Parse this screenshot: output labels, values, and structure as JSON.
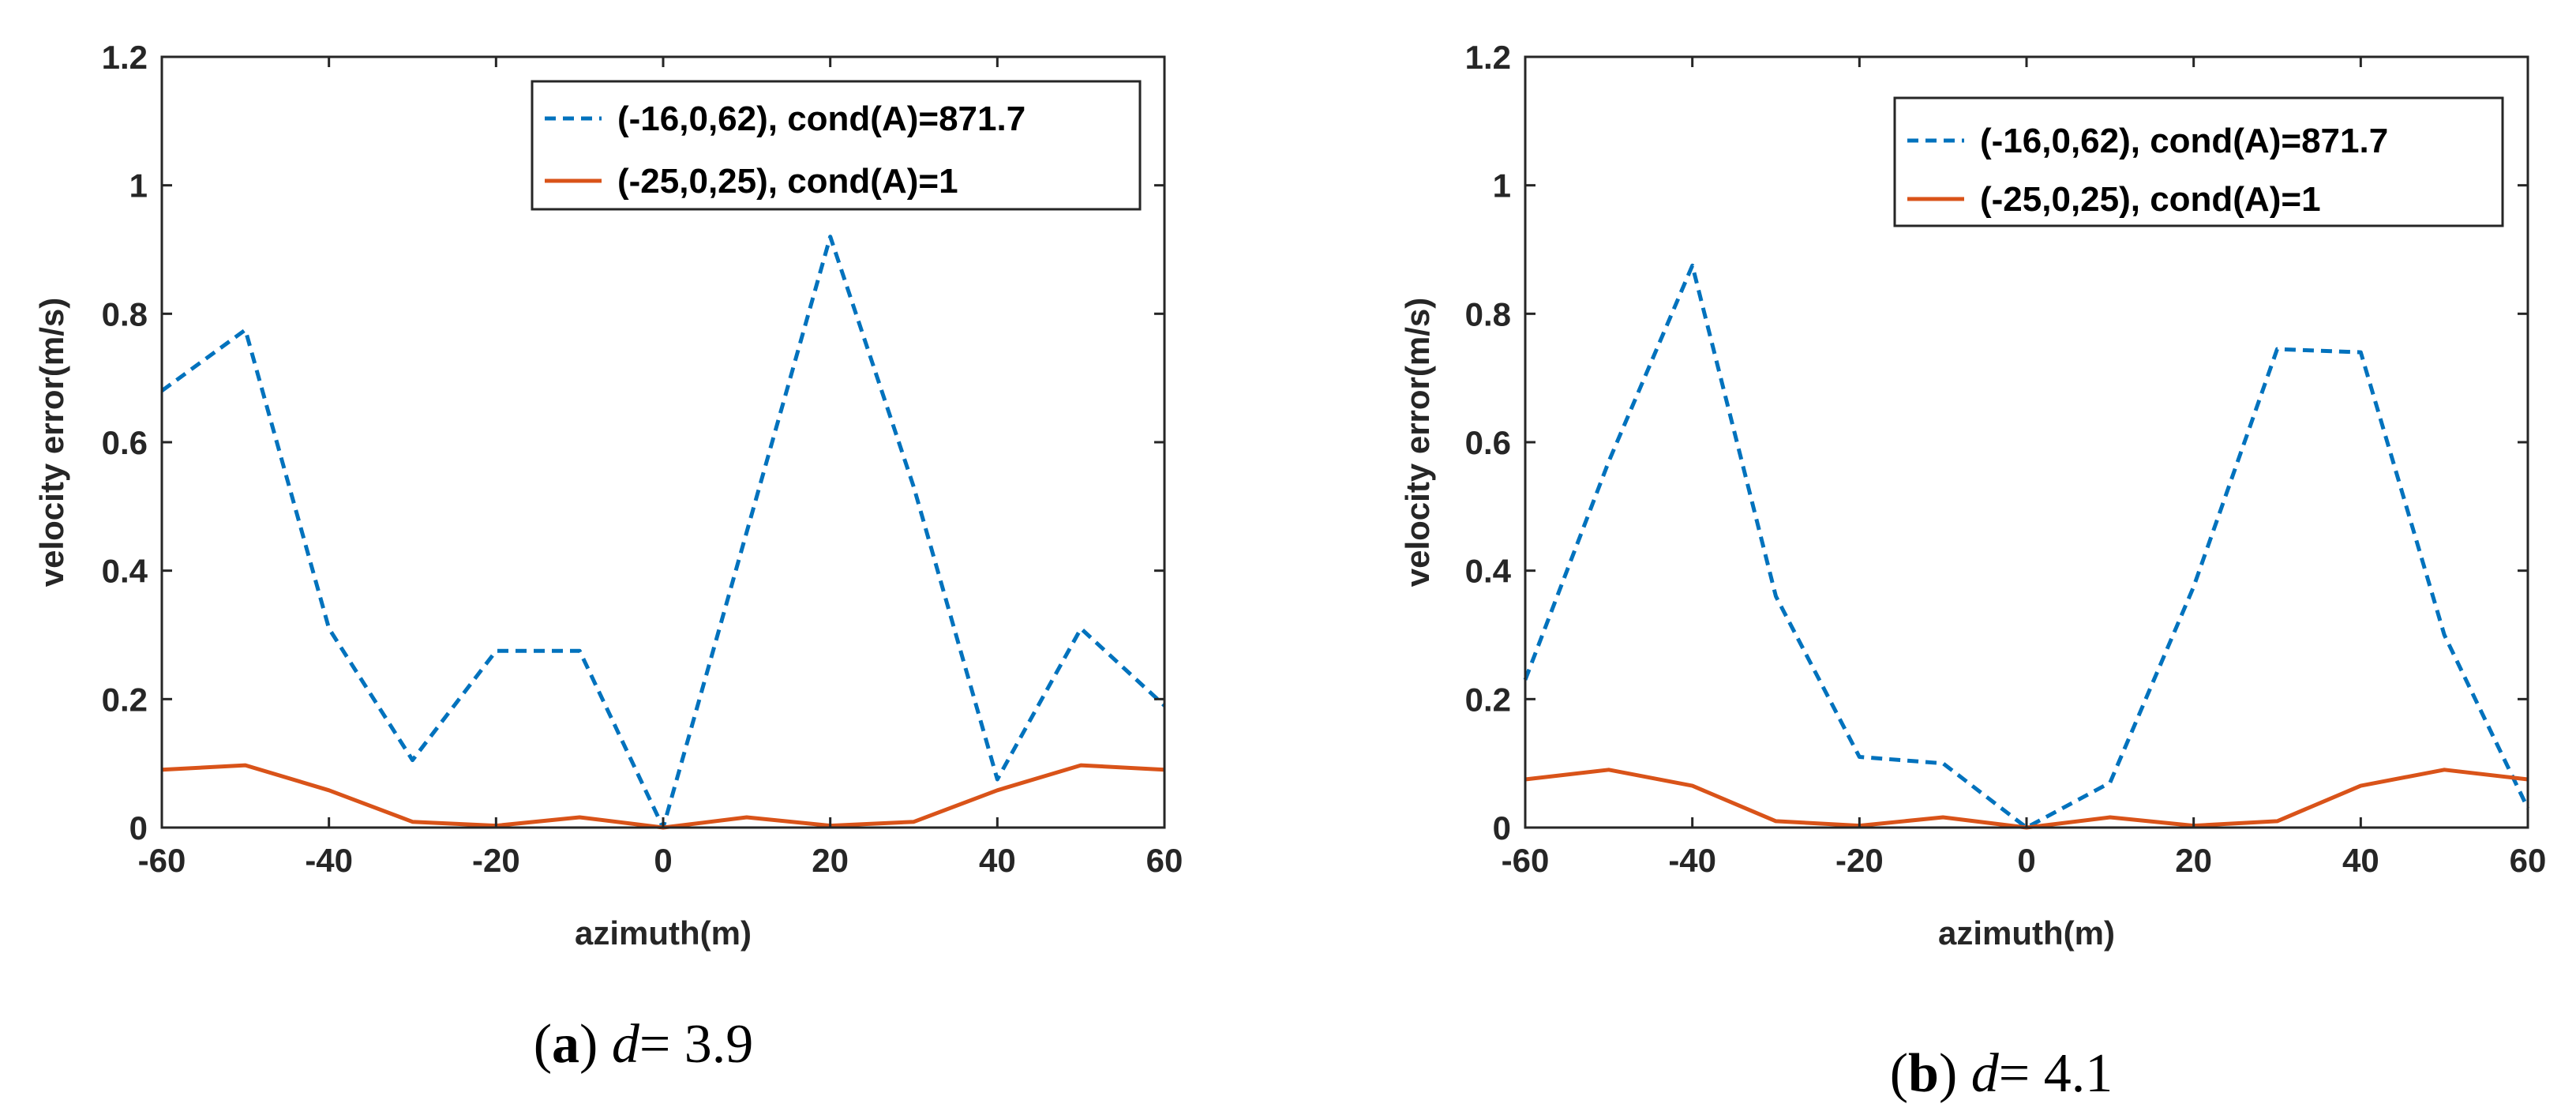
{
  "chart_data": [
    {
      "type": "line",
      "panel_label": "a",
      "caption_var": "d",
      "caption_value": "3.9",
      "xlabel": "azimuth(m)",
      "ylabel": "velocity error(m/s)",
      "xlim": [
        -60,
        60
      ],
      "ylim": [
        0,
        1.2
      ],
      "xticks": [
        -60,
        -40,
        -20,
        0,
        20,
        40,
        60
      ],
      "yticks": [
        0,
        0.2,
        0.4,
        0.6,
        0.8,
        1,
        1.2
      ],
      "x": [
        -60,
        -50,
        -40,
        -30,
        -20,
        -10,
        0,
        10,
        20,
        30,
        40,
        50,
        60
      ],
      "legend_position": "top-right",
      "series": [
        {
          "name": "(-16,0,62), cond(A)=871.7",
          "color": "#0072BD",
          "style": "dashed",
          "values": [
            0.68,
            0.775,
            0.31,
            0.105,
            0.275,
            0.275,
            0.0,
            0.46,
            0.92,
            0.53,
            0.075,
            0.31,
            0.19
          ]
        },
        {
          "name": "(-25,0,25), cond(A)=1",
          "color": "#D95319",
          "style": "solid",
          "values": [
            0.09,
            0.097,
            0.058,
            0.009,
            0.003,
            0.016,
            0.0,
            0.016,
            0.003,
            0.009,
            0.058,
            0.097,
            0.09
          ]
        }
      ]
    },
    {
      "type": "line",
      "panel_label": "b",
      "caption_var": "d",
      "caption_value": "4.1",
      "xlabel": "azimuth(m)",
      "ylabel": "velocity error(m/s)",
      "xlim": [
        -60,
        60
      ],
      "ylim": [
        0,
        1.2
      ],
      "xticks": [
        -60,
        -40,
        -20,
        0,
        20,
        40,
        60
      ],
      "yticks": [
        0,
        0.2,
        0.4,
        0.6,
        0.8,
        1,
        1.2
      ],
      "x": [
        -60,
        -50,
        -40,
        -30,
        -20,
        -10,
        0,
        10,
        20,
        30,
        40,
        50,
        60
      ],
      "legend_position": "top-right",
      "series": [
        {
          "name": "(-16,0,62), cond(A)=871.7",
          "color": "#0072BD",
          "style": "dashed",
          "values": [
            0.23,
            0.57,
            0.875,
            0.36,
            0.11,
            0.1,
            0.0,
            0.07,
            0.375,
            0.745,
            0.74,
            0.3,
            0.03
          ]
        },
        {
          "name": "(-25,0,25), cond(A)=1",
          "color": "#D95319",
          "style": "solid",
          "values": [
            0.075,
            0.09,
            0.065,
            0.01,
            0.003,
            0.016,
            0.0,
            0.016,
            0.003,
            0.01,
            0.065,
            0.09,
            0.075
          ]
        }
      ]
    }
  ]
}
